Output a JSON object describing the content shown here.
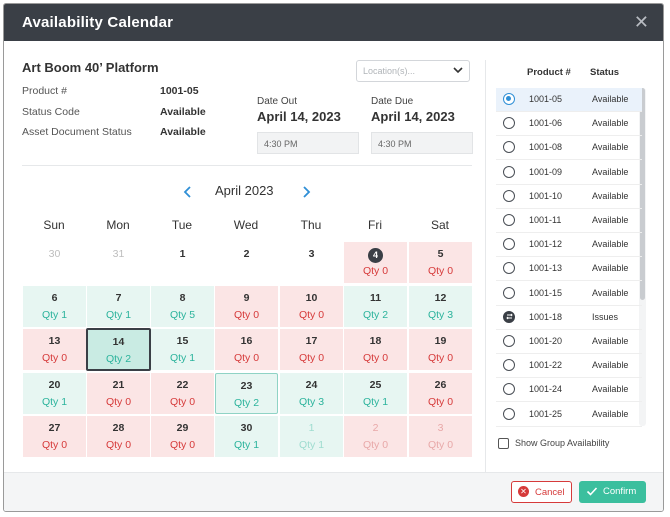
{
  "dialog": {
    "title": "Availability Calendar",
    "close_icon": "close-icon"
  },
  "asset": {
    "name": "Art Boom 40’ Platform",
    "fields": [
      {
        "label": "Product #",
        "value": "1001-05"
      },
      {
        "label": "Status Code",
        "value": "Available"
      },
      {
        "label": "Asset Document Status",
        "value": "Available"
      }
    ]
  },
  "location": {
    "placeholder": "Location(s)..."
  },
  "dates": {
    "out_label": "Date Out",
    "out_value": "April 14, 2023",
    "out_time": "4:30 PM",
    "due_label": "Date Due",
    "due_value": "April 14, 2023",
    "due_time": "4:30 PM"
  },
  "calendar": {
    "month_label": "April 2023",
    "weekdays": [
      "Sun",
      "Mon",
      "Tue",
      "Wed",
      "Thu",
      "Fri",
      "Sat"
    ],
    "weeks": [
      [
        {
          "n": "30",
          "q": "",
          "s": "muted-plain"
        },
        {
          "n": "31",
          "q": "",
          "s": "muted-plain"
        },
        {
          "n": "1",
          "q": "",
          "s": "plain"
        },
        {
          "n": "2",
          "q": "",
          "s": "plain"
        },
        {
          "n": "3",
          "q": "",
          "s": "plain"
        },
        {
          "n": "4",
          "q": "Qty 0",
          "s": "red-today"
        },
        {
          "n": "5",
          "q": "Qty 0",
          "s": "red"
        }
      ],
      [
        {
          "n": "6",
          "q": "Qty 1",
          "s": "green"
        },
        {
          "n": "7",
          "q": "Qty 1",
          "s": "green"
        },
        {
          "n": "8",
          "q": "Qty 5",
          "s": "green"
        },
        {
          "n": "9",
          "q": "Qty 0",
          "s": "red"
        },
        {
          "n": "10",
          "q": "Qty 0",
          "s": "red"
        },
        {
          "n": "11",
          "q": "Qty 2",
          "s": "green"
        },
        {
          "n": "12",
          "q": "Qty 3",
          "s": "green"
        }
      ],
      [
        {
          "n": "13",
          "q": "Qty 0",
          "s": "red"
        },
        {
          "n": "14",
          "q": "Qty 2",
          "s": "selected"
        },
        {
          "n": "15",
          "q": "Qty 1",
          "s": "green"
        },
        {
          "n": "16",
          "q": "Qty 0",
          "s": "red"
        },
        {
          "n": "17",
          "q": "Qty 0",
          "s": "red"
        },
        {
          "n": "18",
          "q": "Qty 0",
          "s": "red"
        },
        {
          "n": "19",
          "q": "Qty 0",
          "s": "red"
        }
      ],
      [
        {
          "n": "20",
          "q": "Qty 1",
          "s": "green"
        },
        {
          "n": "21",
          "q": "Qty 0",
          "s": "red"
        },
        {
          "n": "22",
          "q": "Qty 0",
          "s": "red"
        },
        {
          "n": "23",
          "q": "Qty 2",
          "s": "green-outlined"
        },
        {
          "n": "24",
          "q": "Qty 3",
          "s": "green"
        },
        {
          "n": "25",
          "q": "Qty 1",
          "s": "green"
        },
        {
          "n": "26",
          "q": "Qty 0",
          "s": "red"
        }
      ],
      [
        {
          "n": "27",
          "q": "Qty 0",
          "s": "red"
        },
        {
          "n": "28",
          "q": "Qty 0",
          "s": "red"
        },
        {
          "n": "29",
          "q": "Qty 0",
          "s": "red"
        },
        {
          "n": "30",
          "q": "Qty 1",
          "s": "green"
        },
        {
          "n": "1",
          "q": "Qty 1",
          "s": "muted-green"
        },
        {
          "n": "2",
          "q": "Qty 0",
          "s": "muted-red"
        },
        {
          "n": "3",
          "q": "Qty 0",
          "s": "muted-red"
        }
      ]
    ]
  },
  "product_list": {
    "col_product": "Product #",
    "col_status": "Status",
    "items": [
      {
        "product": "1001-05",
        "status": "Available",
        "state": "checked"
      },
      {
        "product": "1001-06",
        "status": "Available",
        "state": "empty"
      },
      {
        "product": "1001-08",
        "status": "Available",
        "state": "empty"
      },
      {
        "product": "1001-09",
        "status": "Available",
        "state": "empty"
      },
      {
        "product": "1001-10",
        "status": "Available",
        "state": "empty"
      },
      {
        "product": "1001-11",
        "status": "Available",
        "state": "empty"
      },
      {
        "product": "1001-12",
        "status": "Available",
        "state": "empty"
      },
      {
        "product": "1001-13",
        "status": "Available",
        "state": "empty"
      },
      {
        "product": "1001-15",
        "status": "Available",
        "state": "empty"
      },
      {
        "product": "1001-18",
        "status": "Issues",
        "state": "issue"
      },
      {
        "product": "1001-20",
        "status": "Available",
        "state": "empty"
      },
      {
        "product": "1001-22",
        "status": "Available",
        "state": "empty"
      },
      {
        "product": "1001-24",
        "status": "Available",
        "state": "empty"
      },
      {
        "product": "1001-25",
        "status": "Available",
        "state": "empty"
      }
    ],
    "group_label": "Show Group Availability"
  },
  "footer": {
    "cancel_label": "Cancel",
    "confirm_label": "Confirm"
  },
  "colors": {
    "titlebar": "#3a3f46",
    "available": "#2bb39c",
    "unavailable": "#d63a3a",
    "confirm": "#3bbf9e",
    "selected_radio": "#2f8fd6"
  }
}
